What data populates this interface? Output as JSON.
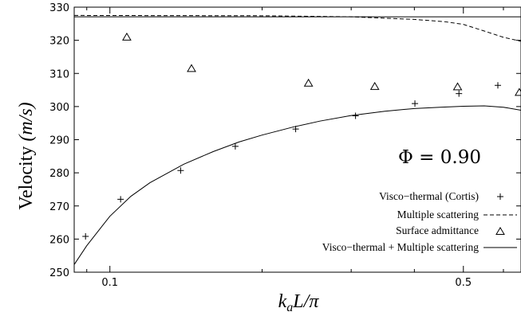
{
  "chart_data": {
    "type": "line",
    "xscale": "log",
    "xlabel": "k_a L/π",
    "ylabel": "Velocity (m/s)",
    "xlim": [
      0.085,
      0.65
    ],
    "ylim": [
      250,
      330
    ],
    "xticks": [
      0.1,
      0.5
    ],
    "xtick_labels": [
      "0.1",
      "0.5"
    ],
    "yticks": [
      250,
      260,
      270,
      280,
      290,
      300,
      310,
      320,
      330
    ],
    "annotation": "Φ = 0.90",
    "legend_position": "bottom-right",
    "series": [
      {
        "name": "Visco−thermal (Cortis)",
        "style": "plus",
        "x": [
          0.0895,
          0.105,
          0.138,
          0.177,
          0.233,
          0.306,
          0.401,
          0.49,
          0.585
        ],
        "y": [
          260.8,
          272.0,
          280.7,
          288.0,
          293.2,
          297.2,
          300.9,
          303.9,
          306.4
        ]
      },
      {
        "name": "Multiple scattering",
        "style": "dashed",
        "x": [
          0.085,
          0.2,
          0.3,
          0.4,
          0.46,
          0.5,
          0.55,
          0.6,
          0.65
        ],
        "y": [
          327.5,
          327.4,
          327.1,
          326.3,
          325.6,
          324.8,
          322.8,
          320.9,
          319.7
        ]
      },
      {
        "name": "Surface admittance",
        "style": "triangle",
        "x": [
          0.108,
          0.145,
          0.247,
          0.334,
          0.487,
          0.645
        ],
        "y": [
          320.9,
          311.4,
          307.0,
          306.0,
          305.9,
          304.2
        ]
      },
      {
        "name": "Visco−thermal + Multiple scattering",
        "style": "solid",
        "x": [
          0.085,
          0.09,
          0.1,
          0.11,
          0.12,
          0.14,
          0.16,
          0.18,
          0.2,
          0.23,
          0.26,
          0.3,
          0.35,
          0.4,
          0.45,
          0.5,
          0.55,
          0.6,
          0.65
        ],
        "y": [
          252.3,
          258.0,
          266.9,
          272.9,
          277.0,
          282.6,
          286.4,
          289.3,
          291.4,
          293.8,
          295.6,
          297.3,
          298.6,
          299.4,
          299.8,
          300.1,
          300.2,
          299.8,
          298.9
        ]
      }
    ]
  }
}
